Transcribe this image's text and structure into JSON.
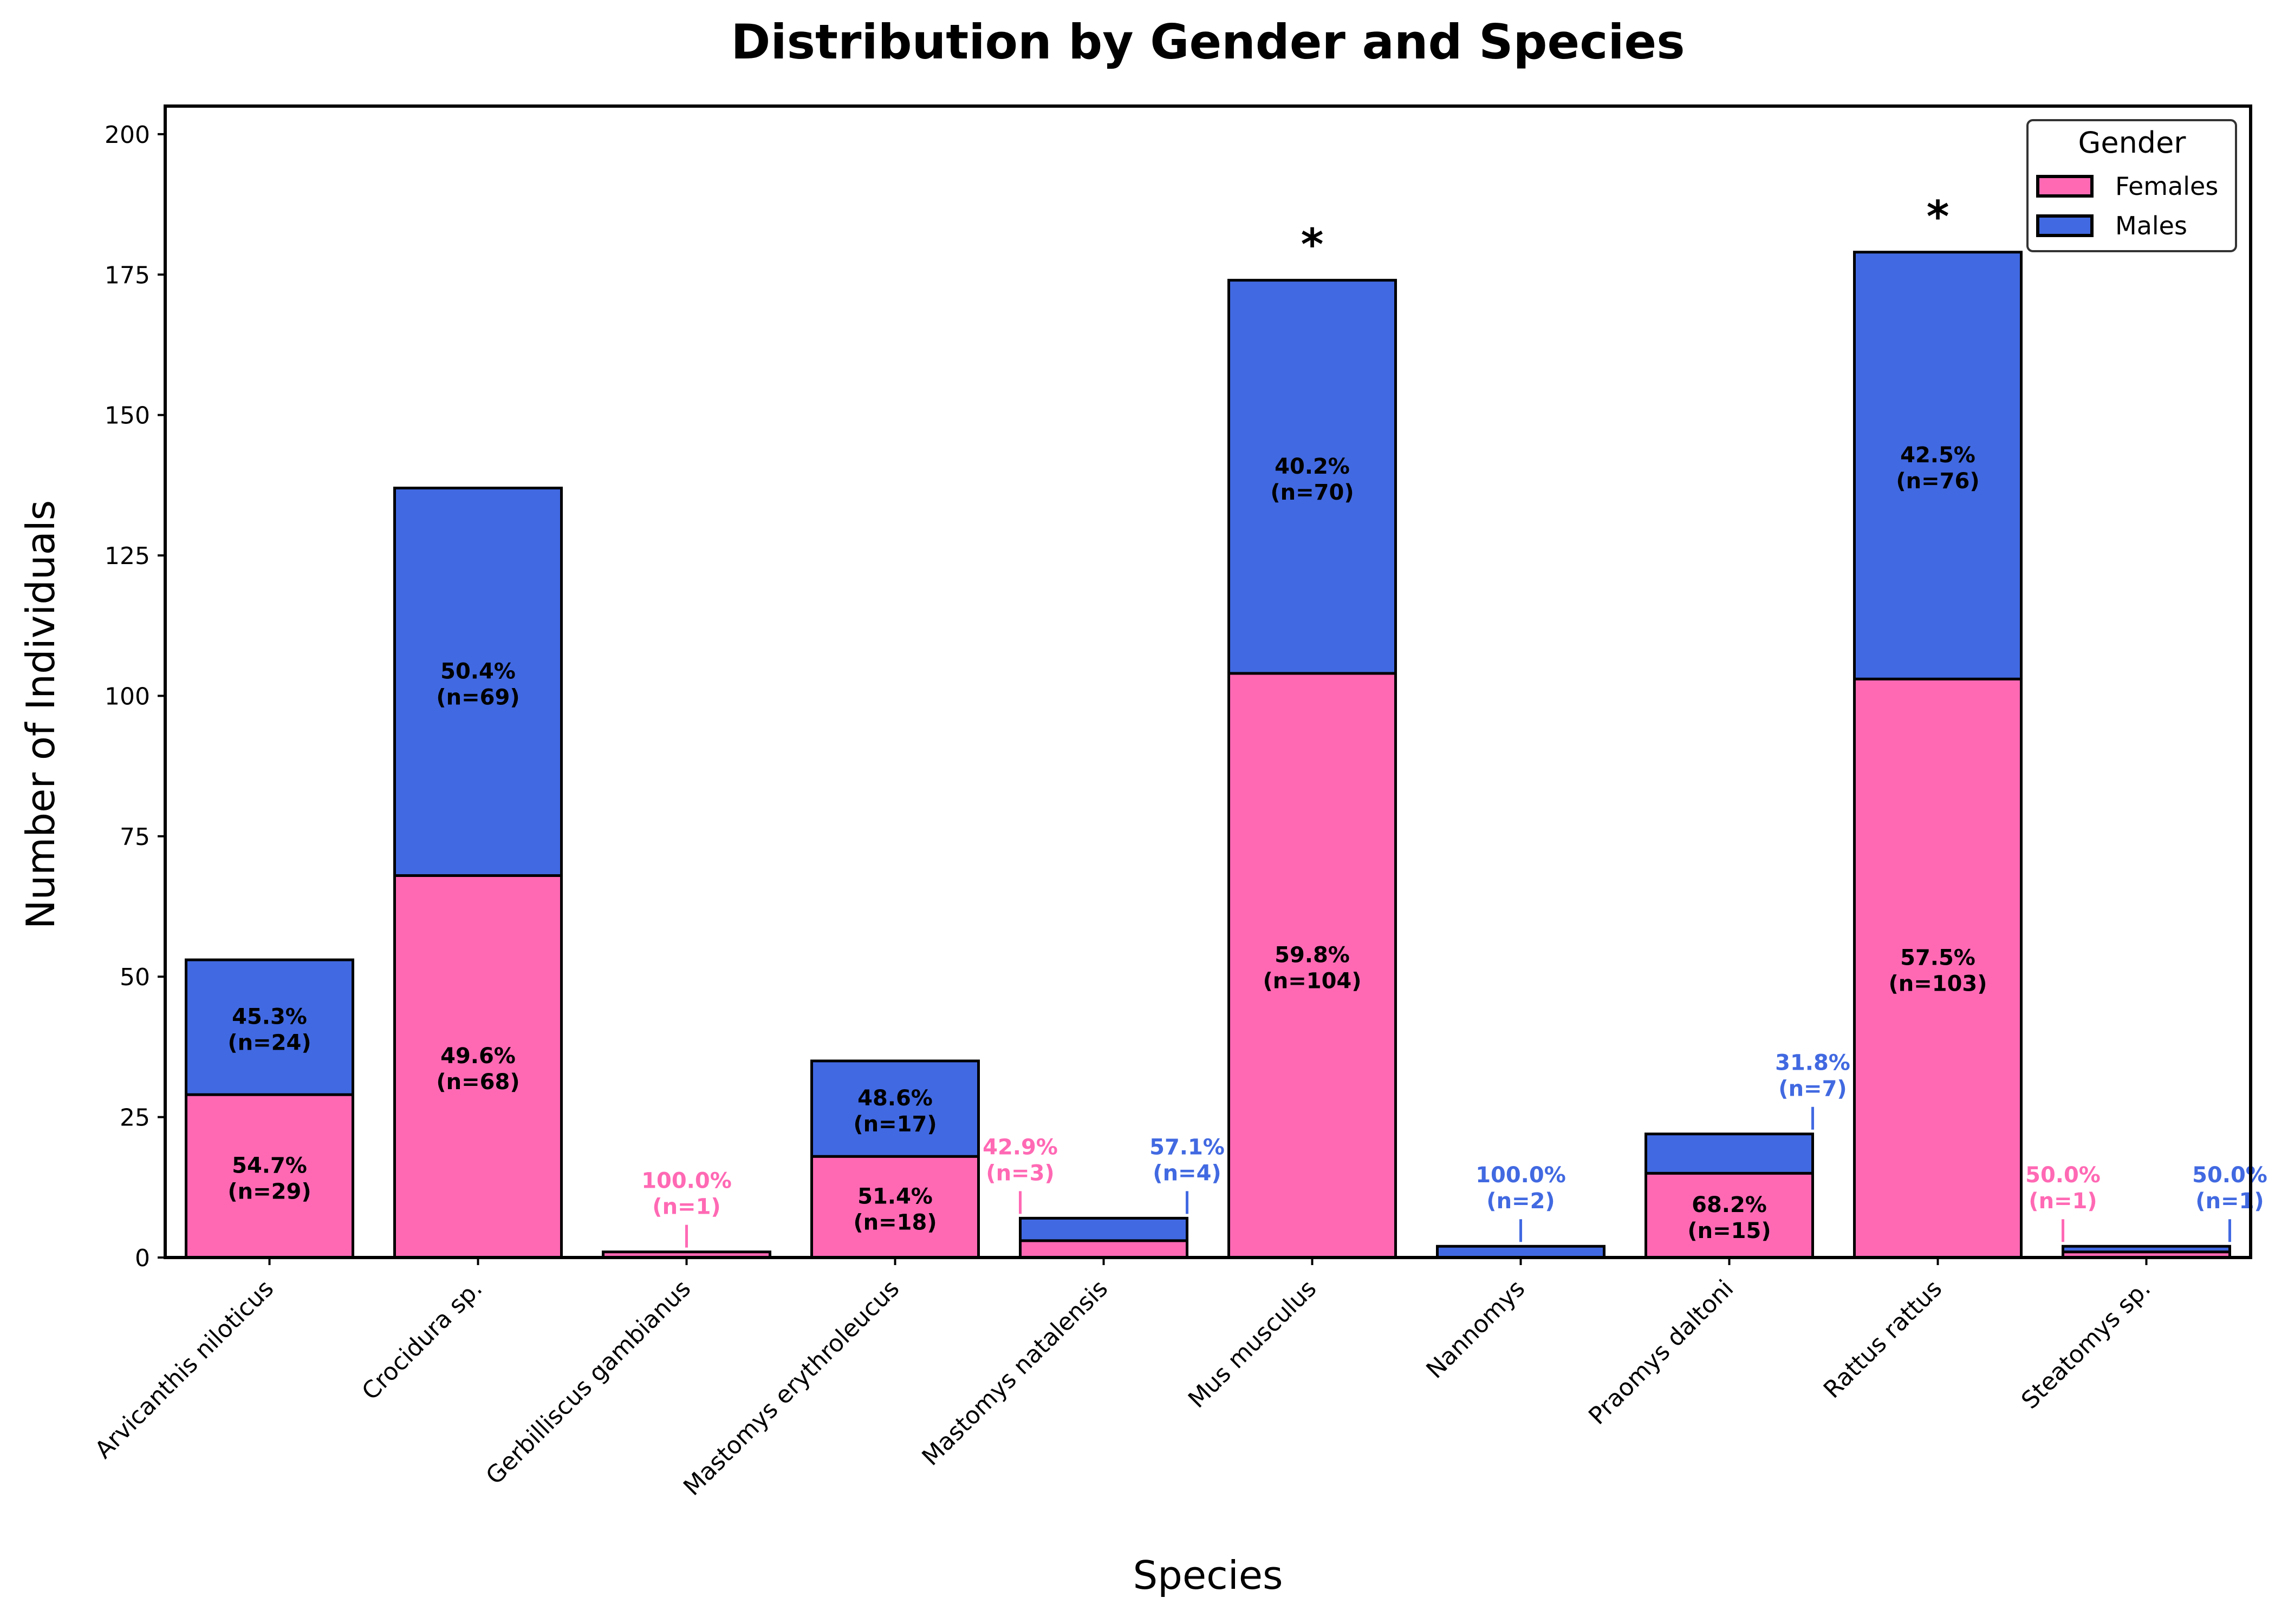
{
  "chart_data": {
    "type": "bar",
    "stacked": true,
    "title": "Distribution by Gender and Species",
    "xlabel": "Species",
    "ylabel": "Number of Individuals",
    "ylim": [
      0,
      205
    ],
    "yticks": [
      0,
      25,
      50,
      75,
      100,
      125,
      150,
      175,
      200
    ],
    "grid": false,
    "categories": [
      "Arvicanthis niloticus",
      "Crocidura sp.",
      "Gerbilliscus gambianus",
      "Mastomys erythroleucus",
      "Mastomys natalensis",
      "Mus musculus",
      "Nannomys",
      "Praomys daltoni",
      "Rattus rattus",
      "Steatomys sp."
    ],
    "series": [
      {
        "name": "Females",
        "color": "#ff69b4",
        "values": [
          29,
          68,
          1,
          18,
          3,
          104,
          0,
          15,
          103,
          1
        ],
        "percent_labels": [
          "54.7%",
          "49.6%",
          "100.0%",
          "51.4%",
          "42.9%",
          "59.8%",
          "",
          "68.2%",
          "57.5%",
          "50.0%"
        ],
        "n_labels": [
          "(n=29)",
          "(n=68)",
          "(n=1)",
          "(n=18)",
          "(n=3)",
          "(n=104)",
          "",
          "(n=15)",
          "(n=103)",
          "(n=1)"
        ]
      },
      {
        "name": "Males",
        "color": "#4169e1",
        "values": [
          24,
          69,
          0,
          17,
          4,
          70,
          2,
          7,
          76,
          1
        ],
        "percent_labels": [
          "45.3%",
          "50.4%",
          "",
          "48.6%",
          "57.1%",
          "40.2%",
          "100.0%",
          "31.8%",
          "42.5%",
          "50.0%"
        ],
        "n_labels": [
          "(n=24)",
          "(n=69)",
          "",
          "(n=17)",
          "(n=4)",
          "(n=70)",
          "(n=2)",
          "(n=7)",
          "(n=76)",
          "(n=1)"
        ]
      }
    ],
    "significance_markers": [
      {
        "category": "Mus musculus",
        "symbol": "*"
      },
      {
        "category": "Rattus rattus",
        "symbol": "*"
      }
    ],
    "legend": {
      "title": "Gender",
      "placement": "top-right",
      "entries": [
        "Females",
        "Males"
      ]
    }
  }
}
